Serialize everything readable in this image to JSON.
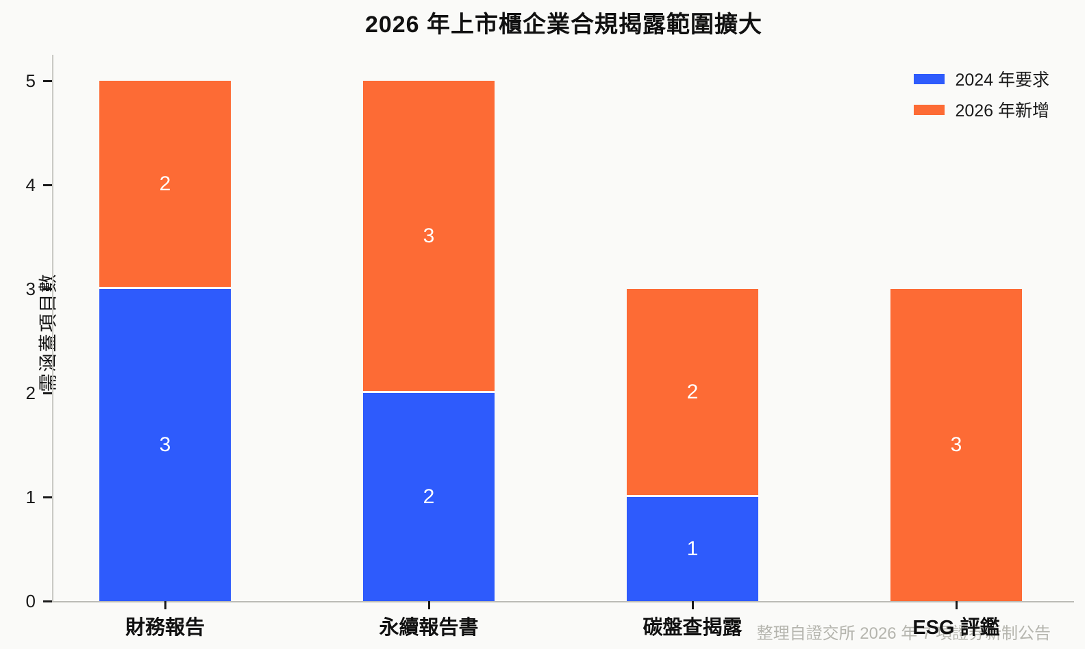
{
  "title": "2026 年上市櫃企業合規揭露範圍擴大",
  "footer": "整理自證交所 2026 年 7 項證券新制公告",
  "chart_data": {
    "type": "bar",
    "stacked": true,
    "title": "2026 年上市櫃企業合規揭露範圍擴大",
    "categories": [
      "財務報告",
      "永續報告書",
      "碳盤查揭露",
      "ESG 評鑑"
    ],
    "series": [
      {
        "name": "2024 年要求",
        "color": "#2E5BFC",
        "values": [
          3,
          2,
          1,
          0
        ]
      },
      {
        "name": "2026 年新增",
        "color": "#FD6B35",
        "values": [
          2,
          3,
          2,
          3
        ]
      }
    ],
    "totals": [
      5,
      5,
      3,
      3
    ],
    "xlabel": "",
    "ylabel": "需涵蓋項目數",
    "yticks": [
      0,
      1,
      2,
      3,
      4,
      5
    ],
    "ylim": [
      0,
      5.25
    ],
    "grid": false,
    "legend_position": "top-right",
    "bar_value_labels_shown": true,
    "source_note": "整理自證交所 2026 年 7 項證券新制公告",
    "colors": {
      "background": "#FAFAF8",
      "axis_line": "#C9C9C4",
      "tick_mark": "#1A1A1A",
      "bar_label_text": "#FFFFFF",
      "segment_separator": "#FFFFFF",
      "footer_text": "#B5B5AE",
      "title_text": "#111111"
    }
  }
}
